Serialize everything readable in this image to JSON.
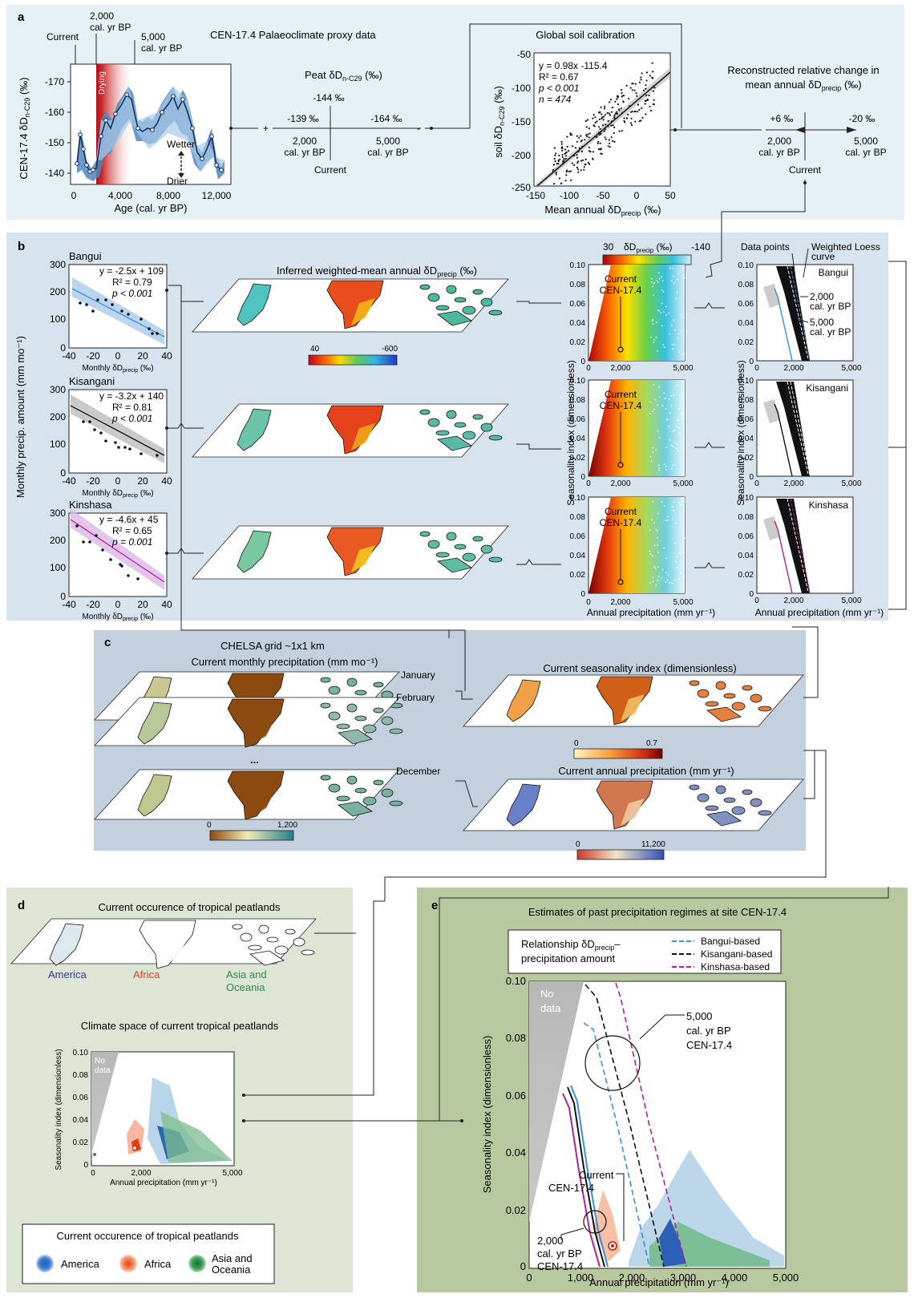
{
  "panels": {
    "a": {
      "label": "a",
      "proxy_title": "CEN-17.4 Palaeoclimate proxy data",
      "current_tag": "Current",
      "yr2000_tag_1": "2,000",
      "yr2000_tag_2": "cal. yr BP",
      "yr5000_tag_1": "5,000",
      "yr5000_tag_2": "cal. yr BP",
      "drying": "Drying",
      "wetter": "Wetter",
      "drier": "Drier",
      "ylabel": "CEN-17.4 δD",
      "ylabel_sub": "n-C29",
      "ylabel_unit": "(‰)",
      "xlabel": "Age (cal. yr BP)",
      "yticks": [
        "-170",
        "-160",
        "-150",
        "-140"
      ],
      "xticks": [
        "0",
        "4,000",
        "8,000",
        "12,000"
      ],
      "peat_title": "Peat δD",
      "peat_sub": "n-C29",
      "peat_unit": "(‰)",
      "peat_top": "-144 ‰",
      "peat_left_val": "-139 ‰",
      "peat_right_val": "-164 ‰",
      "peat_left_1": "2,000",
      "peat_left_2": "cal. yr BP",
      "peat_right_1": "5,000",
      "peat_right_2": "cal. yr BP",
      "peat_bottom": "Current",
      "plus": "+",
      "minus": "-",
      "soil_title": "Global soil calibration",
      "soil_eq": "y = 0.98x -115.4",
      "soil_r2": "R² = 0.67",
      "soil_p": "p < 0.001",
      "soil_n": "n = 474",
      "soil_ylabel": "soil δD",
      "soil_ylabel_sub": "n-C29",
      "soil_ylabel_unit": "(‰)",
      "soil_xlabel": "Mean annual δD",
      "soil_xlabel_sub": "precip",
      "soil_xlabel_unit": "(‰)",
      "soil_yticks": [
        "-50",
        "-100",
        "-150",
        "-200",
        "-250"
      ],
      "soil_xticks": [
        "-150",
        "-100",
        "-50",
        "0",
        "50"
      ],
      "recon_title_1": "Reconstructed relative change in",
      "recon_title_2": "mean annual δD",
      "recon_title_sub": "precip",
      "recon_title_unit": "(‰)",
      "recon_left_val": "+6 ‰",
      "recon_right_val": "-20 ‰",
      "recon_left_1": "2,000",
      "recon_left_2": "cal. yr BP",
      "recon_right_1": "5,000",
      "recon_right_2": "cal. yr BP",
      "recon_bottom": "Current"
    },
    "b": {
      "label": "b",
      "ylabel": "Monthly precip. amount  (mm mo⁻¹)",
      "sites": [
        {
          "name": "Bangui",
          "eq": "y = -2.5x + 109",
          "r2": "R² = 0.79",
          "p": "p < 0.001"
        },
        {
          "name": "Kisangani",
          "eq": "y = -3.2x + 140",
          "r2": "R² = 0.81",
          "p": "p < 0.001"
        },
        {
          "name": "Kinshasa",
          "eq": "y = -4.6x + 45",
          "r2": "R² = 0.65",
          "p": "p = 0.001"
        }
      ],
      "scatter_yticks": [
        "300",
        "200",
        "100",
        "0"
      ],
      "scatter_xticks": [
        "-40",
        "-20",
        "0",
        "20",
        "40"
      ],
      "scatter_xlabel": "Monthly δD",
      "scatter_xlabel_sub": "precip",
      "scatter_xlabel_unit": "(‰)",
      "map_title": "Inferred weighted-mean annual δD",
      "map_title_sub": "precip",
      "map_title_unit": "(‰)",
      "map_cbar_min": "40",
      "map_cbar_max": "-600",
      "space_cbar_min": "30",
      "space_cbar_label": "δD",
      "space_cbar_sub": "precip",
      "space_cbar_unit": "(‰)",
      "space_cbar_max": "-140",
      "current_1": "Current",
      "current_2": "CEN-17.4",
      "space_yticks": [
        "0.10",
        "0.08",
        "0.06",
        "0.04",
        "0.02",
        "0"
      ],
      "space_xticks": [
        "0",
        "2,000",
        "5,000"
      ],
      "space_ylabel": "Seasonality index (dimensionless)",
      "space_xlabel": "Annual precipitation (mm yr⁻¹)",
      "data_points": "Data points",
      "loess_1": "Weighted Loess",
      "loess_2": "curve",
      "loess_2000_1": "2,000",
      "loess_2000_2": "cal. yr BP",
      "loess_5000_1": "5,000",
      "loess_5000_2": "cal. yr BP"
    },
    "c": {
      "label": "c",
      "grid_title": "CHELSA grid ~1x1 km",
      "monthly_title": "Current monthly precipitation (mm mo⁻¹)",
      "january": "January",
      "february": "February",
      "december": "December",
      "ellipsis": "...",
      "monthly_cbar_min": "0",
      "monthly_cbar_max": "1,200",
      "season_title": "Current seasonality index (dimensionless)",
      "season_cbar_min": "0",
      "season_cbar_max": "0.7",
      "annual_title": "Current annual precipitation (mm yr⁻¹)",
      "annual_cbar_min": "0",
      "annual_cbar_max": "11,200"
    },
    "d": {
      "label": "d",
      "occ_title": "Current occurence of tropical peatlands",
      "america": "America",
      "africa": "Africa",
      "asia_1": "Asia and",
      "asia_2": "Oceania",
      "space_title": "Climate space of current tropical peatlands",
      "no_data_1": "No",
      "no_data_2": "data",
      "yticks": [
        "0.10",
        "0.08",
        "0.06",
        "0.04",
        "0.02",
        "0"
      ],
      "xticks": [
        "0",
        "2,000",
        "5,000"
      ],
      "ylabel": "Seasonality index (dimensionless)",
      "xlabel": "Annual precipitation (mm yr⁻¹)",
      "legend_title": "Current occurence of tropical peatlands",
      "legend_america": "America",
      "legend_africa": "Africa",
      "legend_asia_1": "Asia and",
      "legend_asia_2": "Oceania"
    },
    "e": {
      "label": "e",
      "title": "Estimates of past precipitation regimes at site CEN-17.4",
      "rel_1": "Relationship δD",
      "rel_sub": "precip",
      "rel_dash": "–",
      "rel_2": "precipitation amount",
      "leg_bangui": "Bangui-based",
      "leg_kisangani": "Kisangani-based",
      "leg_kinshasa": "Kinshasa-based",
      "no_data_1": "No",
      "no_data_2": "data",
      "ann5000_1": "5,000",
      "ann5000_2": "cal. yr BP",
      "ann5000_3": "CEN-17.4",
      "current_1": "Current",
      "current_2": "CEN-17.4",
      "ann2000_1": "2,000",
      "ann2000_2": "cal. yr BP",
      "ann2000_3": "CEN-17.4",
      "yticks": [
        "0.10",
        "0.08",
        "0.06",
        "0.04",
        "0.02",
        "0"
      ],
      "xticks": [
        "0",
        "1,000",
        "2,000",
        "3,000",
        "4,000",
        "5,000"
      ],
      "ylabel": "Seasonality index (dimensionless)",
      "xlabel": "Annual precipitation (mm yr⁻¹)"
    }
  },
  "colors": {
    "panel_a_bg": "#e6f1f6",
    "panel_b_bg": "#d7e3ed",
    "panel_c_bg": "#c3d1df",
    "panel_d_bg": "#dde6d5",
    "panel_e_bg": "#b8c99f",
    "bangui": "#3a8fdc",
    "kisangani": "#111111",
    "kinshasa": "#b0209a",
    "america": "#1f5fb5",
    "africa": "#f07040",
    "asia": "#2e8b46"
  }
}
